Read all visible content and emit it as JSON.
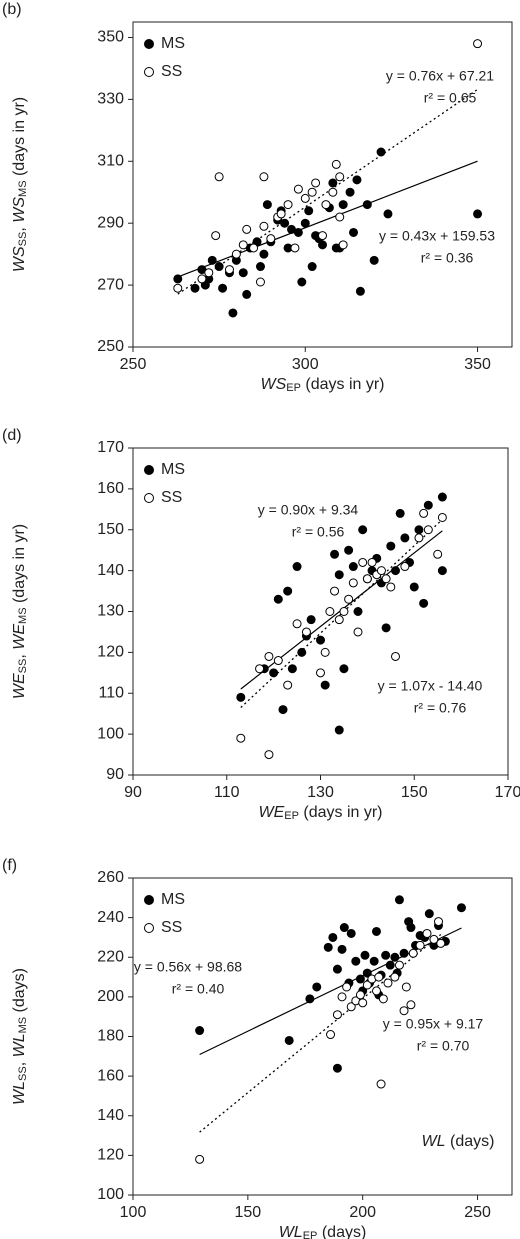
{
  "chart_data": [
    {
      "type": "scatter",
      "panel_label": "(b)",
      "xlabel": [
        {
          "text": "WS",
          "italic": true
        },
        {
          "text": "EP",
          "sub": true
        },
        {
          "text": " (days in yr)"
        }
      ],
      "ylabel": [
        {
          "text": "WS",
          "italic": true
        },
        {
          "text": "SS",
          "sub": true
        },
        {
          "text": ", "
        },
        {
          "text": "WS",
          "italic": true
        },
        {
          "text": "MS",
          "sub": true
        },
        {
          "text": " (days in yr)"
        }
      ],
      "xlim": [
        250,
        360
      ],
      "xticks": [
        250,
        300,
        350
      ],
      "ylim": [
        250,
        355
      ],
      "yticks": [
        250,
        270,
        290,
        310,
        330,
        350
      ],
      "legend": "upper left",
      "series": [
        {
          "name": "MS",
          "marker": "filled",
          "color": "#000000",
          "x": [
            263,
            268,
            270,
            271,
            272,
            273,
            275,
            276,
            278,
            279,
            280,
            282,
            283,
            284,
            286,
            287,
            288,
            289,
            290,
            292,
            293,
            294,
            295,
            296,
            298,
            299,
            300,
            301,
            302,
            303,
            304,
            305,
            307,
            308,
            309,
            310,
            311,
            313,
            314,
            315,
            316,
            318,
            320,
            322,
            324,
            350
          ],
          "y": [
            272,
            269,
            275,
            270,
            272,
            278,
            276,
            269,
            274,
            261,
            278,
            274,
            267,
            282,
            284,
            276,
            280,
            296,
            284,
            291,
            294,
            290,
            282,
            288,
            287,
            271,
            290,
            294,
            276,
            286,
            285,
            283,
            295,
            303,
            282,
            282,
            296,
            300,
            287,
            304,
            268,
            296,
            278,
            313,
            293,
            293
          ],
          "fit": {
            "equation": "y = 0.43x + 159.53",
            "r2_label": "r² = 0.36",
            "slope": 0.43,
            "intercept": 159.53,
            "r2": 0.36,
            "x_range": [
              263,
              350
            ],
            "style": "solid"
          }
        },
        {
          "name": "SS",
          "marker": "open",
          "color": "#000000",
          "x": [
            263,
            270,
            272,
            274,
            275,
            278,
            280,
            282,
            283,
            285,
            287,
            288,
            288,
            290,
            292,
            293,
            295,
            297,
            298,
            300,
            302,
            303,
            305,
            306,
            308,
            309,
            310,
            310,
            311,
            350
          ],
          "y": [
            269,
            272,
            274,
            286,
            305,
            275,
            280,
            283,
            288,
            282,
            271,
            305,
            289,
            285,
            292,
            293,
            296,
            282,
            301,
            298,
            300,
            303,
            286,
            296,
            300,
            309,
            305,
            292,
            283,
            348
          ],
          "fit": {
            "equation": "y = 0.76x + 67.21",
            "r2_label": "r² = 0.65",
            "slope": 0.76,
            "intercept": 67.21,
            "r2": 0.65,
            "x_range": [
              263,
              350
            ],
            "style": "dotted"
          }
        }
      ]
    },
    {
      "type": "scatter",
      "panel_label": "(d)",
      "xlabel": [
        {
          "text": "WE",
          "italic": true
        },
        {
          "text": "EP",
          "sub": true
        },
        {
          "text": " (days in yr)"
        }
      ],
      "ylabel": [
        {
          "text": "WE",
          "italic": true
        },
        {
          "text": "SS",
          "sub": true
        },
        {
          "text": ", "
        },
        {
          "text": "WE",
          "italic": true
        },
        {
          "text": "MS",
          "sub": true
        },
        {
          "text": " (days in yr)"
        }
      ],
      "xlim": [
        90,
        170
      ],
      "xticks": [
        90,
        110,
        130,
        150,
        170
      ],
      "ylim": [
        90,
        170
      ],
      "yticks": [
        90,
        100,
        110,
        120,
        130,
        140,
        150,
        160,
        170
      ],
      "legend": "upper left",
      "series": [
        {
          "name": "MS",
          "marker": "filled",
          "color": "#000000",
          "x": [
            113,
            118,
            120,
            121,
            122,
            123,
            124,
            125,
            126,
            127,
            128,
            130,
            131,
            133,
            134,
            134,
            135,
            136,
            137,
            138,
            139,
            140,
            141,
            142,
            143,
            144,
            145,
            146,
            147,
            148,
            149,
            150,
            151,
            152,
            153,
            156,
            156
          ],
          "y": [
            109,
            116,
            115,
            133,
            106,
            135,
            116,
            141,
            120,
            124,
            128,
            123,
            112,
            144,
            101,
            139,
            116,
            145,
            141,
            130,
            150,
            138,
            140,
            143,
            137,
            126,
            146,
            140,
            154,
            148,
            142,
            136,
            150,
            132,
            156,
            158,
            140
          ],
          "fit": {
            "equation": "y = 0.90x + 9.34",
            "r2_label": "r² = 0.56",
            "slope": 0.9,
            "intercept": 9.34,
            "r2": 0.56,
            "x_range": [
              113,
              156
            ],
            "style": "solid"
          }
        },
        {
          "name": "SS",
          "marker": "open",
          "color": "#000000",
          "x": [
            113,
            117,
            119,
            119,
            121,
            123,
            125,
            127,
            130,
            131,
            132,
            133,
            134,
            135,
            136,
            137,
            138,
            139,
            140,
            141,
            142,
            143,
            144,
            145,
            146,
            148,
            151,
            152,
            153,
            155,
            156
          ],
          "y": [
            99,
            116,
            95,
            119,
            118,
            112,
            127,
            125,
            115,
            120,
            130,
            135,
            128,
            130,
            133,
            137,
            125,
            142,
            138,
            142,
            139,
            140,
            138,
            136,
            119,
            141,
            148,
            154,
            150,
            144,
            153
          ],
          "fit": {
            "equation": "y = 1.07x - 14.40",
            "r2_label": "r² = 0.76",
            "slope": 1.07,
            "intercept": -14.4,
            "r2": 0.76,
            "x_range": [
              113,
              156
            ],
            "style": "dotted"
          }
        }
      ]
    },
    {
      "type": "scatter",
      "panel_label": "(f)",
      "xlabel": [
        {
          "text": "WL",
          "italic": true
        },
        {
          "text": "EP",
          "sub": true
        },
        {
          "text": " (days)"
        }
      ],
      "ylabel": [
        {
          "text": "WL",
          "italic": true
        },
        {
          "text": "SS",
          "sub": true
        },
        {
          "text": ", "
        },
        {
          "text": "WL",
          "italic": true
        },
        {
          "text": "MS",
          "sub": true
        },
        {
          "text": " (days)"
        }
      ],
      "note": [
        {
          "text": "WL",
          "italic": true
        },
        {
          "text": "  (days)"
        }
      ],
      "xlim": [
        100,
        265
      ],
      "xticks": [
        100,
        150,
        200,
        250
      ],
      "ylim": [
        100,
        260
      ],
      "yticks": [
        100,
        120,
        140,
        160,
        180,
        200,
        220,
        240,
        260
      ],
      "legend": "upper left",
      "series": [
        {
          "name": "MS",
          "marker": "filled",
          "color": "#000000",
          "x": [
            129,
            168,
            177,
            180,
            185,
            187,
            189,
            189,
            191,
            192,
            194,
            195,
            197,
            199,
            200,
            201,
            202,
            203,
            205,
            206,
            207,
            208,
            210,
            212,
            214,
            215,
            216,
            218,
            220,
            221,
            223,
            225,
            227,
            229,
            231,
            233,
            236,
            243
          ],
          "y": [
            183,
            178,
            199,
            205,
            225,
            230,
            164,
            214,
            224,
            235,
            207,
            232,
            218,
            209,
            203,
            221,
            212,
            207,
            218,
            233,
            201,
            211,
            221,
            216,
            220,
            212,
            249,
            222,
            238,
            235,
            226,
            231,
            230,
            242,
            226,
            236,
            228,
            245
          ],
          "fit": {
            "equation": "y = 0.56x + 98.68",
            "r2_label": "r² = 0.40",
            "slope": 0.56,
            "intercept": 98.68,
            "r2": 0.4,
            "x_range": [
              129,
              243
            ],
            "style": "solid"
          }
        },
        {
          "name": "SS",
          "marker": "open",
          "color": "#000000",
          "x": [
            129,
            186,
            189,
            191,
            193,
            195,
            197,
            199,
            200,
            202,
            204,
            206,
            207,
            208,
            209,
            211,
            214,
            216,
            218,
            219,
            221,
            222,
            225,
            228,
            231,
            233,
            234
          ],
          "y": [
            118,
            181,
            191,
            200,
            205,
            195,
            198,
            201,
            197,
            206,
            209,
            203,
            210,
            156,
            199,
            207,
            210,
            216,
            193,
            205,
            196,
            222,
            226,
            232,
            229,
            238,
            227
          ],
          "fit": {
            "equation": "y = 0.95x + 9.17",
            "r2_label": "r² = 0.70",
            "slope": 0.95,
            "intercept": 9.17,
            "r2": 0.7,
            "x_range": [
              129,
              234
            ],
            "style": "dotted"
          }
        }
      ]
    }
  ]
}
